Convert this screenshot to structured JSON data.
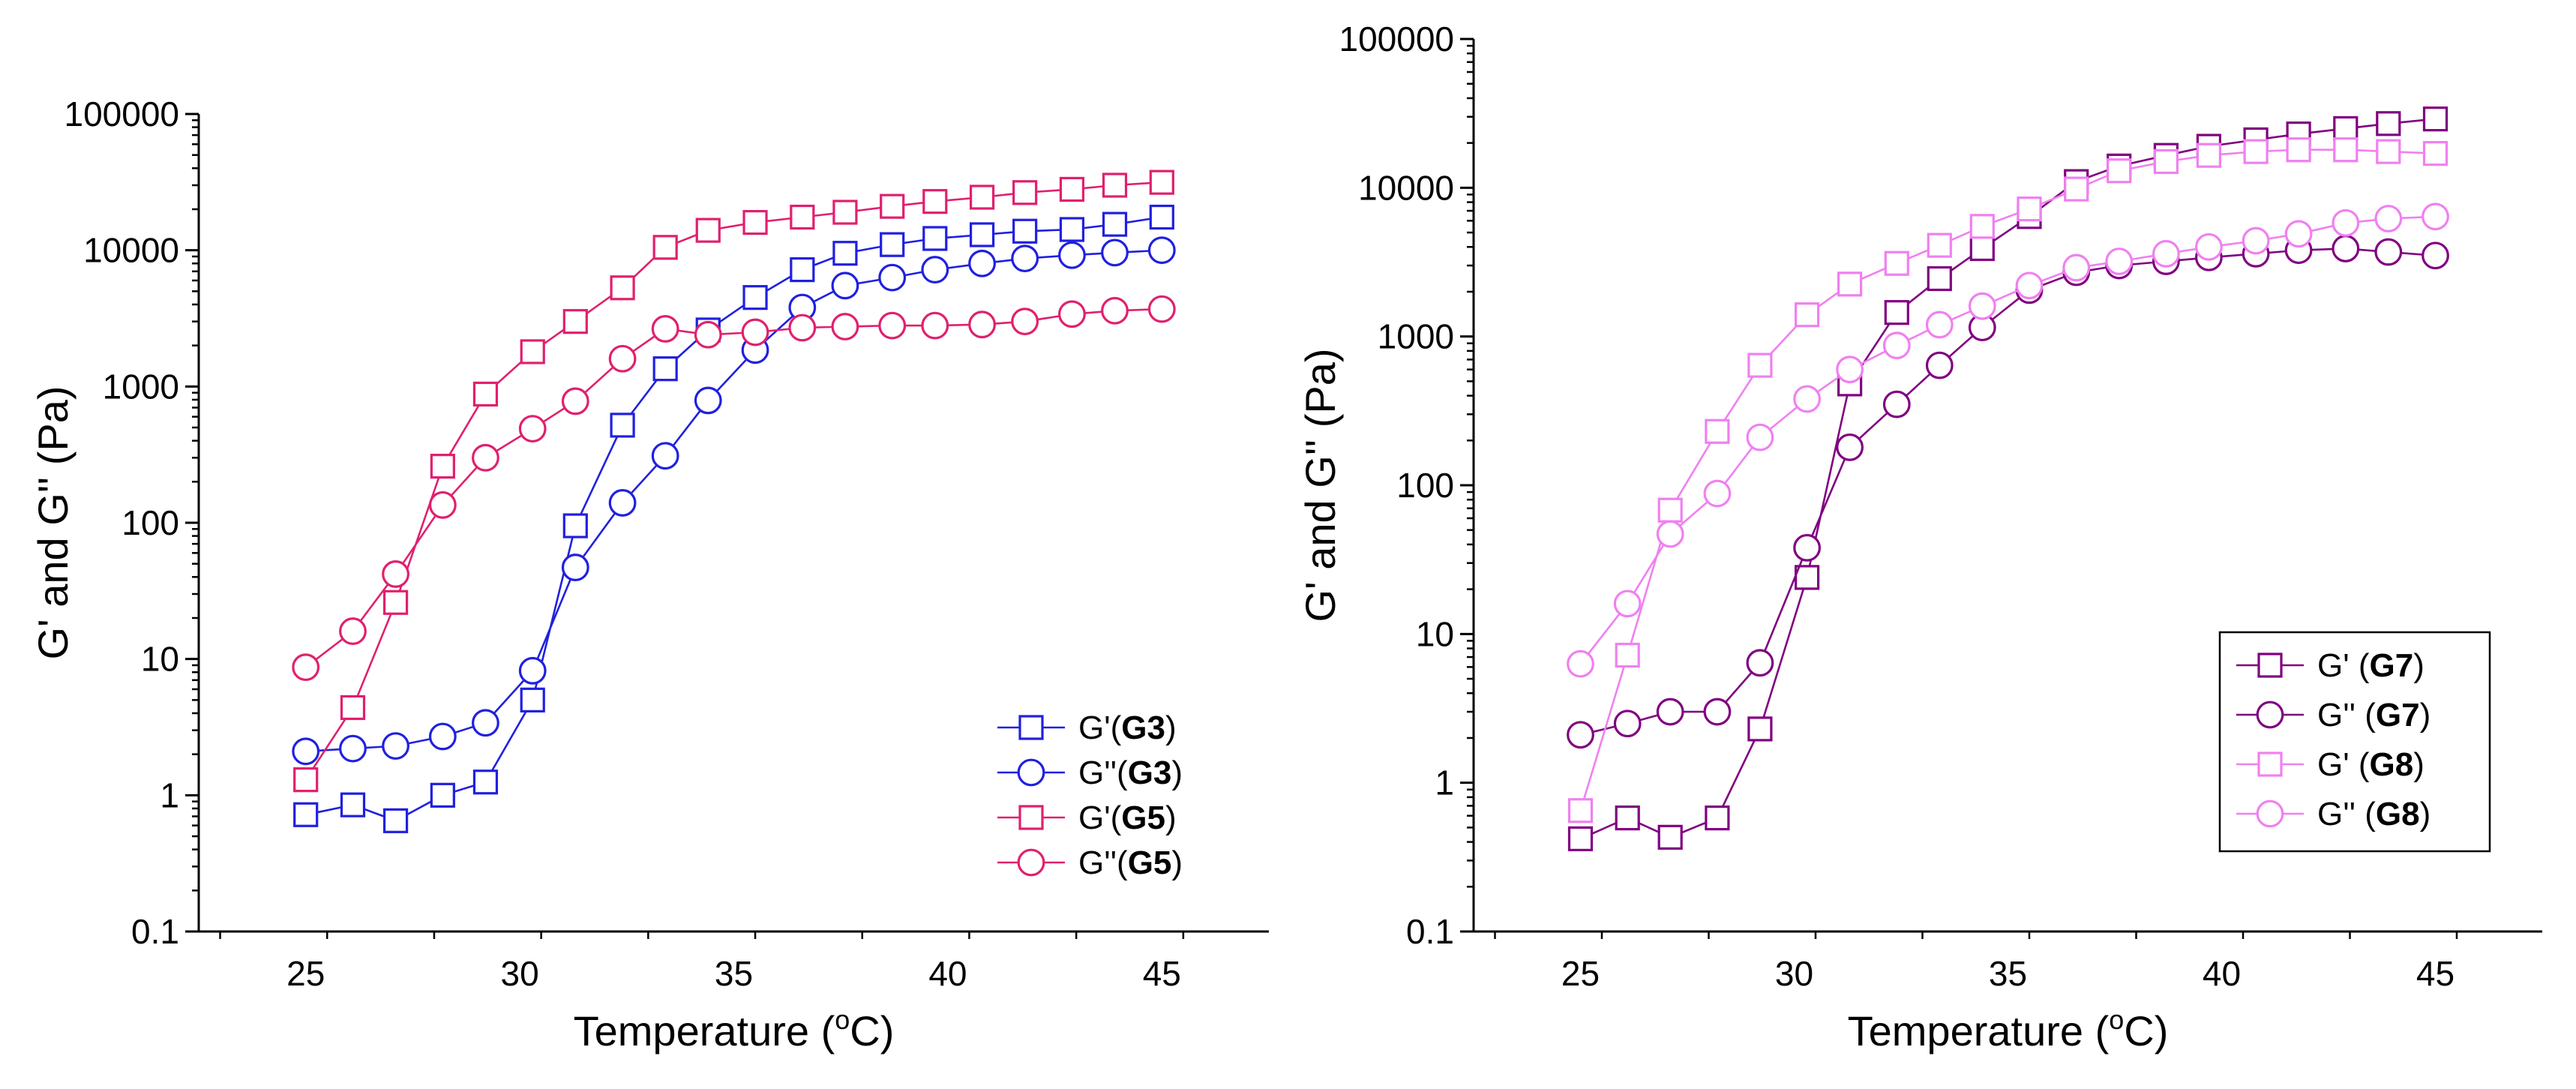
{
  "colors": {
    "g3": "#2020e0",
    "g5": "#e0206e",
    "g7": "#800080",
    "g8": "#f080f0",
    "axis": "#000000"
  },
  "chart_data": [
    {
      "type": "line",
      "title": "",
      "xlabel": "Temperature (°C)",
      "xlabel_parts": {
        "pre": "Temperature (",
        "sup": "o",
        "post": "C)"
      },
      "ylabel": "G' and G'' (Pa)",
      "xlim": [
        22.5,
        47.5
      ],
      "ylim": [
        0.1,
        100000
      ],
      "yscale": "log",
      "xticks": [
        25,
        30,
        35,
        40,
        45
      ],
      "yticks": [
        0.1,
        1,
        10,
        100,
        1000,
        10000,
        100000
      ],
      "ytick_labels": [
        "0.1",
        "1",
        "10",
        "100",
        "1000",
        "10000",
        "100000"
      ],
      "legend_position": "lower-right",
      "x": [
        25.0,
        26.1,
        27.1,
        28.2,
        29.2,
        30.3,
        31.3,
        32.4,
        33.4,
        34.4,
        35.5,
        36.6,
        37.6,
        38.7,
        39.7,
        40.8,
        41.8,
        42.9,
        43.9,
        45.0
      ],
      "series": [
        {
          "name": "G'(G3)",
          "label_pre": "G'(",
          "label_bold": "G3",
          "label_post": ")",
          "marker": "square",
          "color": "#2020e0",
          "values": [
            0.72,
            0.85,
            0.65,
            1.0,
            1.25,
            5.0,
            95,
            520,
            1350,
            2600,
            4500,
            7200,
            9500,
            11000,
            12200,
            13000,
            13800,
            14200,
            15500,
            17500
          ]
        },
        {
          "name": "G''(G3)",
          "label_pre": "G''(",
          "label_bold": "G3",
          "label_post": ")",
          "marker": "circle",
          "color": "#2020e0",
          "values": [
            2.1,
            2.2,
            2.3,
            2.7,
            3.4,
            8.2,
            47,
            140,
            310,
            790,
            1850,
            3800,
            5500,
            6300,
            7200,
            8000,
            8700,
            9200,
            9600,
            10000
          ]
        },
        {
          "name": "G'(G5)",
          "label_pre": "G'(",
          "label_bold": "G5",
          "label_post": ")",
          "marker": "square",
          "color": "#e0206e",
          "values": [
            1.3,
            4.4,
            26,
            260,
            880,
            1800,
            3000,
            5300,
            10500,
            14000,
            16000,
            17500,
            19000,
            21000,
            22800,
            24500,
            26500,
            28000,
            30000,
            31500
          ]
        },
        {
          "name": "G''(G5)",
          "label_pre": "G''(",
          "label_bold": "G5",
          "label_post": ")",
          "marker": "circle",
          "color": "#e0206e",
          "values": [
            8.7,
            16,
            42,
            135,
            300,
            490,
            780,
            1600,
            2650,
            2400,
            2500,
            2700,
            2750,
            2800,
            2800,
            2850,
            3000,
            3400,
            3600,
            3700
          ]
        }
      ]
    },
    {
      "type": "line",
      "title": "",
      "xlabel": "Temperature (°C)",
      "xlabel_parts": {
        "pre": "Temperature (",
        "sup": "o",
        "post": "C)"
      },
      "ylabel": "G' and G'' (Pa)",
      "xlim": [
        22.5,
        47.5
      ],
      "ylim": [
        0.1,
        100000
      ],
      "yscale": "log",
      "xticks": [
        25,
        30,
        35,
        40,
        45
      ],
      "yticks": [
        0.1,
        1,
        10,
        100,
        1000,
        10000,
        100000
      ],
      "ytick_labels": [
        "0.1",
        "1",
        "10",
        "100",
        "1000",
        "10000",
        "100000"
      ],
      "legend_position": "lower-right",
      "x": [
        25.0,
        26.1,
        27.1,
        28.2,
        29.2,
        30.3,
        31.3,
        32.4,
        33.4,
        34.4,
        35.5,
        36.6,
        37.6,
        38.7,
        39.7,
        40.8,
        41.8,
        42.9,
        43.9,
        45.0
      ],
      "series": [
        {
          "name": "G' (G7)",
          "label_pre": "G' (",
          "label_bold": "G7",
          "label_post": ")",
          "marker": "square",
          "color": "#800080",
          "values": [
            0.42,
            0.58,
            0.43,
            0.58,
            2.3,
            24,
            480,
            1450,
            2450,
            3900,
            6400,
            11000,
            14000,
            16500,
            19000,
            21000,
            23000,
            25000,
            27000,
            29000
          ]
        },
        {
          "name": "G'' (G7)",
          "label_pre": "G'' (",
          "label_bold": "G7",
          "label_post": ")",
          "marker": "circle",
          "color": "#800080",
          "values": [
            2.1,
            2.5,
            3.0,
            3.0,
            6.4,
            38,
            180,
            350,
            640,
            1150,
            2050,
            2700,
            3000,
            3200,
            3400,
            3600,
            3800,
            3900,
            3700,
            3500
          ]
        },
        {
          "name": "G' (G8)",
          "label_pre": "G' (",
          "label_bold": "G8",
          "label_post": ")",
          "marker": "square",
          "color": "#f080f0",
          "values": [
            0.65,
            7.2,
            68,
            230,
            640,
            1400,
            2250,
            3100,
            4100,
            5500,
            7200,
            9800,
            13000,
            15000,
            16500,
            17500,
            18000,
            18000,
            17500,
            17000
          ]
        },
        {
          "name": "G'' (G8)",
          "label_pre": "G'' (",
          "label_bold": "G8",
          "label_post": ")",
          "marker": "circle",
          "color": "#f080f0",
          "values": [
            6.3,
            16,
            47,
            88,
            210,
            380,
            600,
            870,
            1200,
            1600,
            2200,
            2900,
            3200,
            3600,
            4000,
            4400,
            4900,
            5800,
            6200,
            6400
          ]
        }
      ]
    }
  ]
}
